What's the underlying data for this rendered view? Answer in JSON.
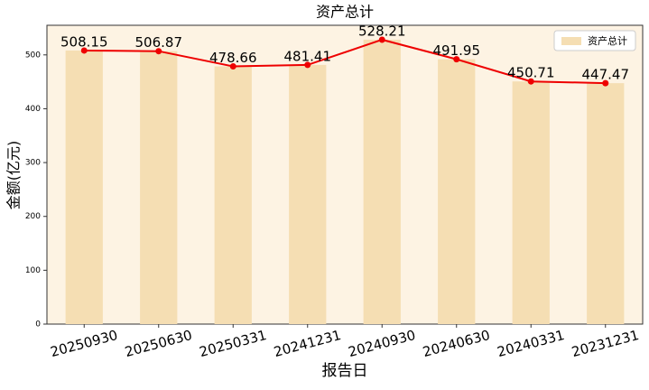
{
  "chart_data": {
    "type": "bar",
    "title": "资产总计",
    "x_label": "报告日",
    "y_label": "金额(亿元)",
    "categories": [
      "20250930",
      "20250630",
      "20250331",
      "20241231",
      "20240930",
      "20240630",
      "20240331",
      "20231231"
    ],
    "series": [
      {
        "name": "资产总计",
        "color": "#f5deb3",
        "values": [
          508.15,
          506.87,
          478.66,
          481.41,
          528.21,
          491.95,
          450.71,
          447.47
        ]
      }
    ],
    "line_color": "#ee0000",
    "ylim": [
      0,
      555
    ],
    "yticks": [
      0,
      100,
      200,
      300,
      400,
      500
    ],
    "legend": "upper right"
  }
}
